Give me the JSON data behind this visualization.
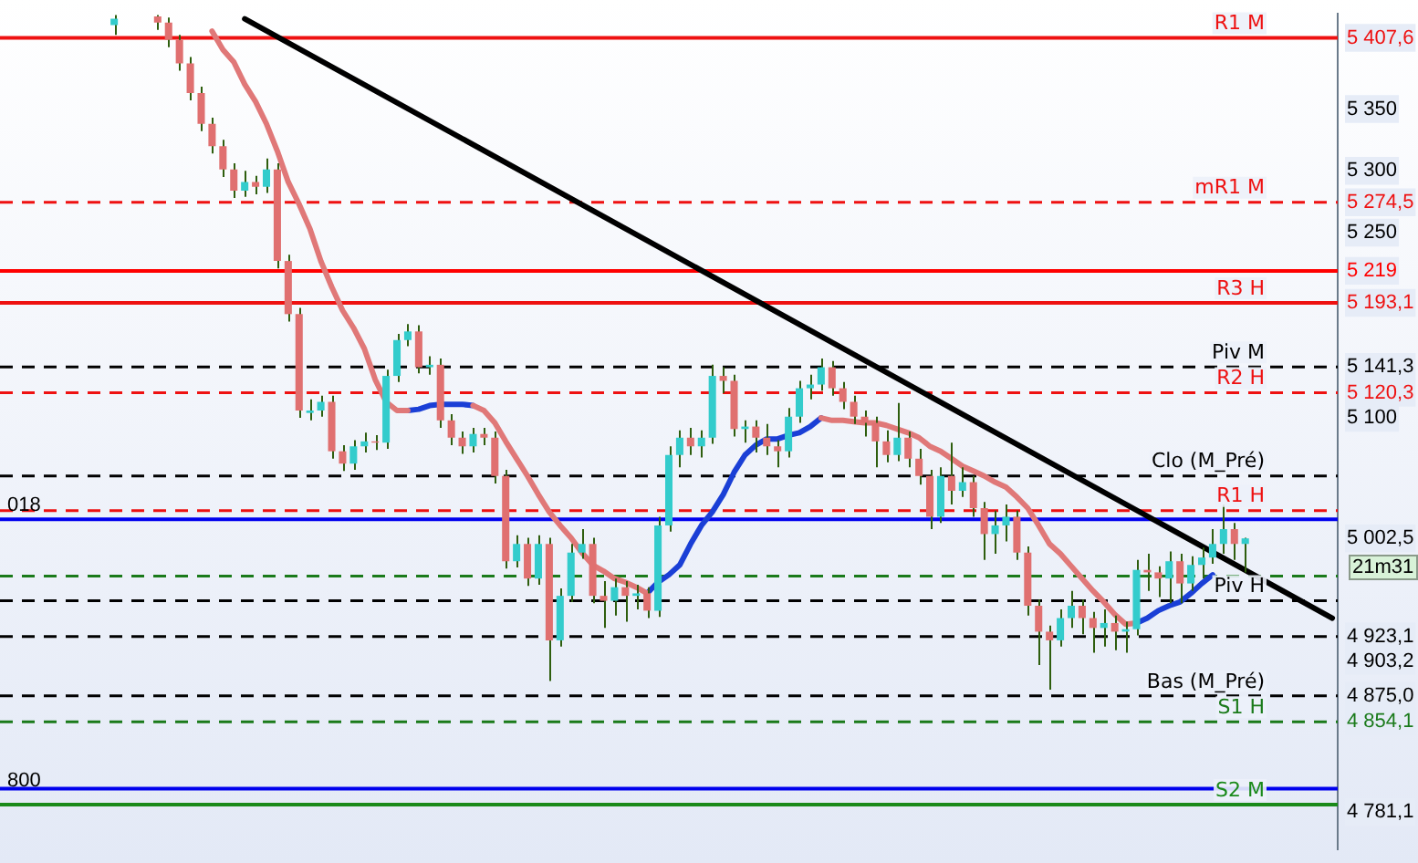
{
  "chart_data": {
    "type": "candlestick",
    "categories": [
      null,
      null,
      null,
      null,
      null,
      null,
      null,
      null,
      null,
      null,
      null,
      null,
      null,
      null,
      null,
      null,
      null,
      null,
      null,
      null,
      null,
      null,
      null,
      null,
      null,
      null,
      null,
      null,
      null,
      null,
      null,
      null,
      null,
      null,
      null,
      null,
      null,
      null,
      null,
      null,
      null,
      null,
      null,
      null,
      null,
      null,
      null,
      null,
      null,
      null,
      null,
      null,
      null,
      null,
      null,
      null,
      null,
      null,
      null,
      null,
      null,
      null,
      null,
      null,
      null,
      null,
      null,
      null,
      null,
      null,
      null,
      null,
      null,
      null,
      null,
      null,
      null,
      null,
      null,
      null,
      null,
      null,
      null,
      null,
      null,
      null,
      null,
      null,
      null,
      null,
      null,
      null,
      null,
      null,
      null,
      null,
      null,
      null,
      null,
      null,
      null,
      null,
      null,
      null,
      null,
      null,
      null,
      null,
      null,
      null,
      null,
      null,
      null,
      null,
      null,
      null,
      null,
      null,
      null,
      null,
      null,
      null,
      null
    ],
    "ohlc": [
      null,
      null,
      null,
      null,
      null,
      null,
      null,
      null,
      null,
      null,
      [
        5418,
        5426,
        5410,
        5423
      ],
      null,
      null,
      null,
      [
        5425,
        5426,
        5414,
        5420
      ],
      [
        5420,
        5424,
        5400,
        5406
      ],
      [
        5406,
        5410,
        5381,
        5387
      ],
      [
        5387,
        5392,
        5357,
        5363
      ],
      [
        5363,
        5368,
        5332,
        5338
      ],
      [
        5338,
        5343,
        5314,
        5320
      ],
      [
        5320,
        5325,
        5295,
        5301
      ],
      [
        5301,
        5306,
        5278,
        5284
      ],
      [
        5284,
        5300,
        5279,
        5291
      ],
      [
        5291,
        5296,
        5281,
        5287
      ],
      [
        5287,
        5310,
        5282,
        5301
      ],
      [
        5301,
        5306,
        5221,
        5227
      ],
      [
        5227,
        5232,
        5178,
        5184
      ],
      [
        5184,
        5189,
        5100,
        5106
      ],
      [
        5104,
        5115,
        5098,
        5106
      ],
      [
        5106,
        5118,
        5101,
        5113
      ],
      [
        5113,
        5118,
        5067,
        5073
      ],
      [
        5073,
        5078,
        5057,
        5063
      ],
      [
        5063,
        5082,
        5058,
        5077
      ],
      [
        5077,
        5088,
        5072,
        5081
      ],
      [
        5081,
        5086,
        5074,
        5080
      ],
      [
        5080,
        5139,
        5075,
        5134
      ],
      [
        5134,
        5168,
        5129,
        5163
      ],
      [
        5163,
        5176,
        5158,
        5170
      ],
      [
        5170,
        5175,
        5136,
        5141
      ],
      [
        5141,
        5150,
        5135,
        5143
      ],
      [
        5143,
        5148,
        5092,
        5098
      ],
      [
        5098,
        5103,
        5078,
        5084
      ],
      [
        5084,
        5089,
        5071,
        5077
      ],
      [
        5077,
        5092,
        5072,
        5087
      ],
      [
        5087,
        5092,
        5078,
        5084
      ],
      [
        5084,
        5089,
        5047,
        5053
      ],
      [
        5053,
        5058,
        4978,
        4984
      ],
      [
        4984,
        5005,
        4979,
        4998
      ],
      [
        4998,
        5003,
        4964,
        4970
      ],
      [
        4970,
        5005,
        4965,
        4998
      ],
      [
        4998,
        5003,
        4887,
        4920
      ],
      [
        4920,
        4962,
        4915,
        4956
      ],
      [
        4956,
        4998,
        4951,
        4991
      ],
      [
        4991,
        5010,
        4986,
        4998
      ],
      [
        4998,
        5003,
        4950,
        4956
      ],
      [
        4956,
        4968,
        4930,
        4952
      ],
      [
        4952,
        4970,
        4940,
        4963
      ],
      [
        4963,
        4968,
        4935,
        4956
      ],
      [
        4956,
        4965,
        4945,
        4958
      ],
      [
        4958,
        4963,
        4938,
        4944
      ],
      [
        4944,
        5020,
        4939,
        5013
      ],
      [
        5013,
        5077,
        5008,
        5070
      ],
      [
        5070,
        5090,
        5060,
        5084
      ],
      [
        5084,
        5092,
        5070,
        5077
      ],
      [
        5077,
        5090,
        5068,
        5084
      ],
      [
        5084,
        5143,
        5079,
        5134
      ],
      [
        5134,
        5141,
        5120,
        5130
      ],
      [
        5130,
        5135,
        5085,
        5091
      ],
      [
        5091,
        5098,
        5080,
        5093
      ],
      [
        5093,
        5098,
        5072,
        5084
      ],
      [
        5084,
        5095,
        5070,
        5077
      ],
      [
        5077,
        5082,
        5060,
        5073
      ],
      [
        5073,
        5108,
        5068,
        5101
      ],
      [
        5101,
        5130,
        5096,
        5124
      ],
      [
        5124,
        5135,
        5115,
        5127
      ],
      [
        5127,
        5148,
        5122,
        5141
      ],
      [
        5141,
        5146,
        5118,
        5124
      ],
      [
        5124,
        5129,
        5107,
        5113
      ],
      [
        5113,
        5118,
        5095,
        5101
      ],
      [
        5101,
        5106,
        5085,
        5096
      ],
      [
        5096,
        5101,
        5060,
        5081
      ],
      [
        5081,
        5090,
        5064,
        5070
      ],
      [
        5070,
        5112,
        5065,
        5084
      ],
      [
        5084,
        5089,
        5060,
        5067
      ],
      [
        5067,
        5075,
        5046,
        5053
      ],
      [
        5053,
        5058,
        5010,
        5020
      ],
      [
        5020,
        5060,
        5015,
        5053
      ],
      [
        5053,
        5080,
        5030,
        5041
      ],
      [
        5041,
        5060,
        5036,
        5048
      ],
      [
        5048,
        5053,
        5020,
        5027
      ],
      [
        5027,
        5032,
        4985,
        5006
      ],
      [
        5006,
        5025,
        4990,
        5013
      ],
      [
        5013,
        5030,
        5000,
        5020
      ],
      [
        5020,
        5025,
        4985,
        4991
      ],
      [
        4991,
        4996,
        4940,
        4948
      ],
      [
        4948,
        4953,
        4900,
        4927
      ],
      [
        4927,
        4932,
        4880,
        4920
      ],
      [
        4920,
        4945,
        4915,
        4938
      ],
      [
        4938,
        4960,
        4930,
        4948
      ],
      [
        4948,
        4953,
        4925,
        4938
      ],
      [
        4938,
        4943,
        4910,
        4930
      ],
      [
        4930,
        4945,
        4915,
        4934
      ],
      [
        4934,
        4940,
        4912,
        4927
      ],
      [
        4927,
        4935,
        4910,
        4929
      ],
      [
        4929,
        4985,
        4924,
        4977
      ],
      [
        4977,
        4990,
        4960,
        4975
      ],
      [
        4975,
        4980,
        4955,
        4970
      ],
      [
        4970,
        4992,
        4950,
        4984
      ],
      [
        4984,
        4990,
        4950,
        4966
      ],
      [
        4966,
        4988,
        4960,
        4981
      ],
      [
        4981,
        4995,
        4970,
        4987
      ],
      [
        4987,
        5010,
        4982,
        4998
      ],
      [
        4998,
        5030,
        4990,
        5010
      ],
      [
        5010,
        5015,
        4985,
        4998
      ],
      [
        4998,
        5003,
        4975,
        5002.5
      ],
      null,
      null,
      null,
      null,
      null,
      null,
      null,
      null
    ],
    "colors": [
      null,
      null,
      null,
      null,
      null,
      null,
      null,
      null,
      null,
      null,
      "#33cccc",
      null,
      null,
      null,
      "#e07070",
      "#e07070",
      "#e07070",
      "#e07070",
      "#e07070",
      "#e07070",
      "#e07070",
      "#e07070",
      "#33cccc",
      "#e07070",
      "#33cccc",
      "#e07070",
      "#e07070",
      "#e07070",
      "#33cccc",
      "#33cccc",
      "#e07070",
      "#e07070",
      "#33cccc",
      "#33cccc",
      "#e07070",
      "#33cccc",
      "#33cccc",
      "#33cccc",
      "#e07070",
      "#33cccc",
      "#e07070",
      "#e07070",
      "#e07070",
      "#33cccc",
      "#e07070",
      "#e07070",
      "#e07070",
      "#33cccc",
      "#e07070",
      "#33cccc",
      "#e07070",
      "#33cccc",
      "#33cccc",
      "#33cccc",
      "#e07070",
      "#e07070",
      "#33cccc",
      "#e07070",
      "#33cccc",
      "#e07070",
      "#33cccc",
      "#33cccc",
      "#33cccc",
      "#e07070",
      "#33cccc",
      "#33cccc",
      "#e07070",
      "#e07070",
      "#33cccc",
      "#e07070",
      "#e07070",
      "#e07070",
      "#33cccc",
      "#33cccc",
      "#33cccc",
      "#33cccc",
      "#e07070",
      "#e07070",
      "#e07070",
      "#e07070",
      "#e07070",
      "#e07070",
      "#33cccc",
      "#e07070",
      "#e07070",
      "#e07070",
      "#33cccc",
      "#e07070",
      "#33cccc",
      "#e07070",
      "#e07070",
      "#33cccc",
      "#33cccc",
      "#e07070",
      "#e07070",
      "#e07070",
      "#e07070",
      "#33cccc",
      "#33cccc",
      "#e07070",
      "#e07070",
      "#33cccc",
      "#e07070",
      "#33cccc",
      "#33cccc",
      "#e07070",
      "#e07070",
      "#33cccc",
      "#e07070",
      "#33cccc",
      "#33cccc",
      "#33cccc",
      "#33cccc",
      "#e07070",
      "#33cccc",
      null,
      null,
      null,
      null,
      null,
      null,
      null,
      null
    ],
    "color": "#2e5e0e",
    "series": [
      {
        "type": "line",
        "color": "#e07878",
        "values": [
          null,
          null,
          null,
          null,
          null,
          null,
          null,
          null,
          null,
          null,
          null,
          null,
          null,
          null,
          null,
          null,
          null,
          null,
          null,
          5413,
          5398,
          5388,
          5370,
          5356,
          5338,
          5316,
          5291,
          5273,
          5253,
          5227,
          5206,
          5187,
          5173,
          5156,
          5131,
          5113,
          5106,
          5106,
          null,
          null,
          null,
          null,
          null,
          5110,
          5106,
          5096,
          5081,
          5067,
          5053,
          5038,
          5024,
          5013,
          5003,
          4991,
          4981,
          4976,
          4970,
          4967,
          4963,
          4958,
          null,
          null,
          null,
          null,
          null,
          null,
          null,
          null,
          null,
          null,
          null,
          null,
          null,
          null,
          null,
          5100,
          5098,
          5098,
          5097,
          5096,
          5096,
          5094,
          5091,
          5088,
          5084,
          5077,
          5073,
          5067,
          5061,
          5057,
          5053,
          5048,
          5044,
          5036,
          5027,
          5013,
          4998,
          4990,
          4980,
          4970,
          4960,
          4951,
          4941,
          4933,
          4934,
          null,
          null,
          null,
          null,
          null,
          null,
          null,
          null,
          null,
          null,
          null,
          null,
          null,
          null,
          null,
          null,
          null,
          null
        ]
      },
      {
        "type": "line",
        "color": "#1a3fd6",
        "values": [
          null,
          null,
          null,
          null,
          null,
          null,
          null,
          null,
          null,
          null,
          null,
          null,
          null,
          null,
          null,
          null,
          null,
          null,
          null,
          null,
          null,
          null,
          null,
          null,
          null,
          null,
          null,
          null,
          null,
          null,
          null,
          null,
          null,
          null,
          null,
          null,
          null,
          5106,
          5107,
          5110,
          5111,
          5111,
          5111,
          5110,
          null,
          null,
          null,
          null,
          null,
          null,
          null,
          null,
          null,
          null,
          null,
          null,
          null,
          null,
          null,
          4958,
          4967,
          4973,
          4981,
          4998,
          5013,
          5024,
          5038,
          5056,
          5070,
          5078,
          5083,
          5083,
          5086,
          5088,
          5093,
          5100,
          null,
          null,
          null,
          null,
          null,
          null,
          null,
          null,
          null,
          null,
          null,
          null,
          null,
          null,
          null,
          null,
          null,
          null,
          null,
          null,
          null,
          null,
          null,
          null,
          null,
          null,
          null,
          null,
          4934,
          4938,
          4944,
          4948,
          4951,
          4958,
          4966,
          4973,
          null,
          null,
          null,
          null,
          null,
          null,
          null,
          null,
          null,
          null,
          null
        ]
      },
      {
        "type": "line",
        "color": "#000000",
        "values": [
          null,
          null,
          null,
          null,
          null,
          null,
          null,
          null,
          null,
          null,
          null,
          null,
          null,
          null,
          null,
          null,
          null,
          null,
          null,
          null,
          null,
          null,
          5423,
          null,
          null,
          null,
          null,
          null,
          null,
          null,
          null,
          null,
          null,
          null,
          null,
          null,
          null,
          null,
          null,
          null,
          null,
          null,
          null,
          null,
          null,
          null,
          null,
          null,
          null,
          null,
          null,
          null,
          null,
          null,
          null,
          null,
          null,
          null,
          null,
          null,
          null,
          null,
          null,
          null,
          null,
          null,
          null,
          null,
          null,
          null,
          null,
          null,
          null,
          null,
          null,
          null,
          null,
          null,
          null,
          null,
          null,
          null,
          null,
          null,
          null,
          null,
          null,
          null,
          null,
          null,
          null,
          null,
          null,
          null,
          null,
          null,
          null,
          null,
          null,
          null,
          null,
          null,
          null,
          null,
          null,
          null,
          null,
          null,
          null,
          null,
          null,
          null,
          null,
          null,
          null,
          null,
          null,
          null,
          null,
          null,
          null,
          null,
          4938
        ]
      }
    ],
    "ylim": [
      4751,
      5427
    ],
    "yticks": [
      {
        "value": 5407.6,
        "label": "5 407,6"
      },
      {
        "value": 5350,
        "label": "5 350"
      },
      {
        "value": 5300,
        "label": "5 300"
      },
      {
        "value": 5274.5,
        "label": "5 274,5"
      },
      {
        "value": 5250,
        "label": "5 250"
      },
      {
        "value": 5219,
        "label": "5 219"
      },
      {
        "value": 5193.1,
        "label": "5 193,1"
      },
      {
        "value": 5141.3,
        "label": "5 141,3"
      },
      {
        "value": 5120.3,
        "label": "5 120,3"
      },
      {
        "value": 5100,
        "label": "5 100"
      },
      {
        "value": 5002.5,
        "label": "5 002,5"
      },
      {
        "value": 4923.1,
        "label": "4 923,1"
      },
      {
        "value": 4903.2,
        "label": "4 903,2"
      },
      {
        "value": 4875.0,
        "label": "4 875,0"
      },
      {
        "value": 4854.1,
        "label": "4 854,1"
      },
      {
        "value": 4781.1,
        "label": "4 781,1"
      }
    ],
    "ref_lines": [
      {
        "axis": "y",
        "value": 5407.6,
        "label": "R1 M",
        "color": "#ee1111",
        "line_style": "solid"
      },
      {
        "axis": "y",
        "value": 5274.5,
        "label": "mR1 M",
        "color": "#ee1111",
        "line_style": "dashed"
      },
      {
        "axis": "y",
        "value": 5219,
        "color": "#ff0000",
        "line_style": "solid"
      },
      {
        "axis": "y",
        "value": 5193.1,
        "label": "R3 H",
        "color": "#ee1111",
        "line_style": "solid"
      },
      {
        "axis": "y",
        "value": 5141.3,
        "label": "Piv M",
        "color": "#000000",
        "line_style": "dashed"
      },
      {
        "axis": "y",
        "value": 5120.3,
        "label": "R2 H",
        "color": "#ee1111",
        "line_style": "dashed"
      },
      {
        "axis": "y",
        "value": 5053,
        "label": "Clo (M_Pré)",
        "color": "#000000",
        "line_style": "dashed"
      },
      {
        "axis": "y",
        "value": 5025,
        "label": "R1 H",
        "color": "#ee1111",
        "line_style": "dashed"
      },
      {
        "axis": "y",
        "value": 5018,
        "color": "#0000ee",
        "line_style": "solid"
      },
      {
        "axis": "y",
        "value": 4972,
        "color": "#1a7a1a",
        "line_style": "dashed"
      },
      {
        "axis": "y",
        "value": 4952,
        "label": "Piv H",
        "color": "#000000",
        "line_style": "dashed"
      },
      {
        "axis": "y",
        "value": 4923.1,
        "color": "#000000",
        "line_style": "dashed"
      },
      {
        "axis": "y",
        "value": 4875.0,
        "label": "Bas (M_Pré)",
        "color": "#000000",
        "line_style": "dashed"
      },
      {
        "axis": "y",
        "value": 4854.1,
        "label": "S1 H",
        "color": "#1a7a1a",
        "line_style": "dashed"
      },
      {
        "axis": "y",
        "value": 4800,
        "color": "#0000ee",
        "line_style": "solid"
      },
      {
        "axis": "y",
        "value": 4787,
        "label": "S2 M",
        "color": "#1a8a1a",
        "line_style": "solid"
      }
    ],
    "annotations": [
      "21m31",
      "018",
      "800"
    ],
    "tick_labels": "y",
    "legend": false,
    "grid": false
  }
}
